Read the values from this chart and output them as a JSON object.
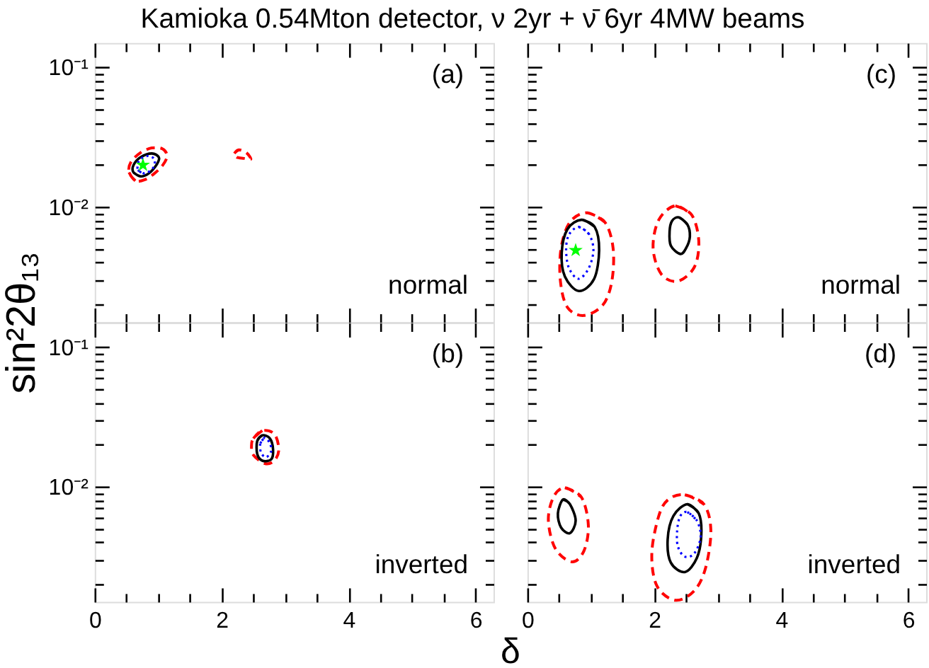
{
  "chart_data": [
    {
      "type": "line",
      "title": "Kamioka 0.54Mton detector, ν 2yr + ν̄ 6yr 4MW beams",
      "ylabel": "sin²2θ₁₃",
      "log": "y",
      "tick_labels": "y",
      "xlim": [
        0,
        6.283
      ],
      "ylim": [
        0.0015,
        0.15
      ],
      "xticks": [
        0,
        {
          "value": 0.5,
          "label": null
        },
        {
          "value": 1,
          "label": null
        },
        {
          "value": 1.5,
          "label": null
        },
        2,
        {
          "value": 2.5,
          "label": null
        },
        {
          "value": 3,
          "label": null
        },
        {
          "value": 3.5,
          "label": null
        },
        4,
        {
          "value": 4.5,
          "label": null
        },
        {
          "value": 5,
          "label": null
        },
        {
          "value": 5.5,
          "label": null
        },
        6
      ],
      "yticks": [
        {
          "value": 0.002,
          "label": null
        },
        {
          "value": 0.003,
          "label": null
        },
        {
          "value": 0.004,
          "label": null
        },
        {
          "value": 0.005,
          "label": null
        },
        {
          "value": 0.006,
          "label": null
        },
        {
          "value": 0.007,
          "label": null
        },
        {
          "value": 0.008,
          "label": null
        },
        {
          "value": 0.009,
          "label": null
        },
        {
          "value": 0.01,
          "label": "10⁻²"
        },
        {
          "value": 0.02,
          "label": null
        },
        {
          "value": 0.03,
          "label": null
        },
        {
          "value": 0.04,
          "label": null
        },
        {
          "value": 0.05,
          "label": null
        },
        {
          "value": 0.06,
          "label": null
        },
        {
          "value": 0.07,
          "label": null
        },
        {
          "value": 0.08,
          "label": null
        },
        {
          "value": 0.09,
          "label": null
        },
        {
          "value": 0.1,
          "label": "10⁻¹"
        }
      ],
      "annotations": [
        "(a)",
        "normal"
      ],
      "series": [
        {
          "color": "#ff0000",
          "line_style": "dashed",
          "x": [
            0.54,
            0.64,
            0.79,
            0.94,
            1.07,
            1.14,
            1.07,
            0.9,
            0.72,
            0.57,
            0.54,
            0.64
          ],
          "values": [
            0.0177,
            0.0154,
            0.0157,
            0.0174,
            0.0199,
            0.0232,
            0.0261,
            0.0265,
            0.0245,
            0.021,
            0.0177,
            0.0154
          ]
        },
        {
          "color": "#ff0000",
          "line_style": "dashed",
          "x": [
            2.2,
            2.27,
            2.39,
            2.46,
            2.35,
            2.24,
            2.2,
            2.27
          ],
          "values": [
            0.0242,
            0.0257,
            0.0245,
            0.022,
            0.0223,
            0.0227,
            0.0242,
            0.0257
          ]
        },
        {
          "color": "#000000",
          "line_style": "solid",
          "x": [
            0.61,
            0.72,
            0.85,
            0.98,
            1.01,
            0.9,
            0.72,
            0.61,
            0.61,
            0.72
          ],
          "values": [
            0.0177,
            0.0166,
            0.0174,
            0.0203,
            0.0227,
            0.0242,
            0.0227,
            0.0199,
            0.0177,
            0.0166
          ]
        },
        {
          "color": "#0000ff",
          "line_style": "dotted",
          "x": [
            0.68,
            0.79,
            0.92,
            0.94,
            0.83,
            0.7,
            0.68,
            0.79
          ],
          "values": [
            0.0184,
            0.0174,
            0.0191,
            0.022,
            0.0232,
            0.0215,
            0.0184,
            0.0174
          ]
        },
        {
          "type": "scatter",
          "marker": "star",
          "color": "#00ff00",
          "x": [
            0.76
          ],
          "values": [
            0.02
          ]
        }
      ]
    },
    {
      "type": "line",
      "log": "y",
      "tick_labels": false,
      "xlim": [
        0,
        6.283
      ],
      "ylim": [
        0.0015,
        0.15
      ],
      "xticks": [
        0,
        {
          "value": 0.5,
          "label": null
        },
        {
          "value": 1,
          "label": null
        },
        {
          "value": 1.5,
          "label": null
        },
        2,
        {
          "value": 2.5,
          "label": null
        },
        {
          "value": 3,
          "label": null
        },
        {
          "value": 3.5,
          "label": null
        },
        4,
        {
          "value": 4.5,
          "label": null
        },
        {
          "value": 5,
          "label": null
        },
        {
          "value": 5.5,
          "label": null
        },
        6
      ],
      "yticks": [
        {
          "value": 0.002,
          "label": null
        },
        {
          "value": 0.003,
          "label": null
        },
        {
          "value": 0.004,
          "label": null
        },
        {
          "value": 0.005,
          "label": null
        },
        {
          "value": 0.006,
          "label": null
        },
        {
          "value": 0.007,
          "label": null
        },
        {
          "value": 0.008,
          "label": null
        },
        {
          "value": 0.009,
          "label": null
        },
        {
          "value": 0.01,
          "label": null
        },
        {
          "value": 0.02,
          "label": null
        },
        {
          "value": 0.03,
          "label": null
        },
        {
          "value": 0.04,
          "label": null
        },
        {
          "value": 0.05,
          "label": null
        },
        {
          "value": 0.06,
          "label": null
        },
        {
          "value": 0.07,
          "label": null
        },
        {
          "value": 0.08,
          "label": null
        },
        {
          "value": 0.09,
          "label": null
        },
        {
          "value": 0.1,
          "label": null
        }
      ],
      "annotations": [
        "(c)",
        "normal"
      ],
      "series": [
        {
          "color": "#ff0000",
          "line_style": "dashed",
          "x": [
            0.94,
            1.22,
            1.35,
            1.33,
            1.19,
            0.89,
            0.63,
            0.52,
            0.53,
            0.67,
            0.94,
            1.22
          ],
          "values": [
            0.0091,
            0.0078,
            0.00507,
            0.00294,
            0.00199,
            0.00167,
            0.00191,
            0.00294,
            0.00507,
            0.0078,
            0.0091,
            0.0078
          ]
        },
        {
          "color": "#ff0000",
          "line_style": "dashed",
          "x": [
            2.33,
            2.59,
            2.7,
            2.63,
            2.37,
            2.11,
            1.98,
            2.07,
            2.33,
            2.59
          ],
          "values": [
            0.0102,
            0.00876,
            0.0057,
            0.00371,
            0.00294,
            0.0033,
            0.00507,
            0.0081,
            0.0102,
            0.00876
          ]
        },
        {
          "color": "#000000",
          "line_style": "solid",
          "x": [
            0.85,
            1.06,
            1.13,
            1.05,
            0.81,
            0.59,
            0.54,
            0.63,
            0.85,
            1.06
          ],
          "values": [
            0.0081,
            0.0072,
            0.0049,
            0.00305,
            0.0025,
            0.00318,
            0.00469,
            0.00693,
            0.0081,
            0.0072
          ]
        },
        {
          "color": "#000000",
          "line_style": "solid",
          "x": [
            2.39,
            2.52,
            2.56,
            2.5,
            2.41,
            2.26,
            2.24,
            2.28,
            2.39,
            2.52
          ],
          "values": [
            0.00842,
            0.0075,
            0.00616,
            0.00507,
            0.00461,
            0.00528,
            0.00667,
            0.00797,
            0.00842,
            0.0075
          ]
        },
        {
          "color": "#0000ff",
          "line_style": "dotted",
          "x": [
            0.81,
            0.97,
            1.04,
            0.96,
            0.8,
            0.65,
            0.61,
            0.66,
            0.81,
            0.97
          ],
          "values": [
            0.0072,
            0.0064,
            0.0049,
            0.0036,
            0.00306,
            0.0037,
            0.00507,
            0.0064,
            0.0072,
            0.0064
          ]
        },
        {
          "type": "scatter",
          "marker": "star",
          "color": "#00ff00",
          "x": [
            0.76
          ],
          "values": [
            0.0049
          ]
        }
      ]
    },
    {
      "type": "line",
      "xlabel": "δ",
      "log": "y",
      "xlim": [
        0,
        6.283
      ],
      "ylim": [
        0.0015,
        0.15
      ],
      "xticks": [
        0,
        {
          "value": 0.5,
          "label": null
        },
        {
          "value": 1,
          "label": null
        },
        {
          "value": 1.5,
          "label": null
        },
        2,
        {
          "value": 2.5,
          "label": null
        },
        {
          "value": 3,
          "label": null
        },
        {
          "value": 3.5,
          "label": null
        },
        4,
        {
          "value": 4.5,
          "label": null
        },
        {
          "value": 5,
          "label": null
        },
        {
          "value": 5.5,
          "label": null
        },
        6
      ],
      "yticks": [
        {
          "value": 0.002,
          "label": null
        },
        {
          "value": 0.003,
          "label": null
        },
        {
          "value": 0.004,
          "label": null
        },
        {
          "value": 0.005,
          "label": null
        },
        {
          "value": 0.006,
          "label": null
        },
        {
          "value": 0.007,
          "label": null
        },
        {
          "value": 0.008,
          "label": null
        },
        {
          "value": 0.009,
          "label": null
        },
        {
          "value": 0.01,
          "label": "10⁻²"
        },
        {
          "value": 0.02,
          "label": null
        },
        {
          "value": 0.03,
          "label": null
        },
        {
          "value": 0.04,
          "label": null
        },
        {
          "value": 0.05,
          "label": null
        },
        {
          "value": 0.06,
          "label": null
        },
        {
          "value": 0.07,
          "label": null
        },
        {
          "value": 0.08,
          "label": null
        },
        {
          "value": 0.09,
          "label": null
        },
        {
          "value": 0.1,
          "label": "10⁻¹"
        }
      ],
      "annotations": [
        "(b)",
        "inverted"
      ],
      "series": [
        {
          "color": "#ff0000",
          "line_style": "dashed",
          "x": [
            2.5,
            2.64,
            2.83,
            2.9,
            2.83,
            2.68,
            2.5,
            2.47,
            2.5,
            2.64
          ],
          "values": [
            0.0222,
            0.0253,
            0.0239,
            0.0185,
            0.0154,
            0.0147,
            0.0169,
            0.0197,
            0.0222,
            0.0253
          ]
        },
        {
          "color": "#000000",
          "line_style": "solid",
          "x": [
            2.56,
            2.64,
            2.76,
            2.81,
            2.78,
            2.64,
            2.56,
            2.56,
            2.64
          ],
          "values": [
            0.0213,
            0.0234,
            0.0222,
            0.0185,
            0.0157,
            0.0154,
            0.0172,
            0.0213,
            0.0234
          ]
        },
        {
          "color": "#0000ff",
          "line_style": "dotted",
          "x": [
            2.61,
            2.68,
            2.76,
            2.78,
            2.7,
            2.62,
            2.61,
            2.68
          ],
          "values": [
            0.0205,
            0.0225,
            0.0205,
            0.018,
            0.0163,
            0.0176,
            0.0205,
            0.0225
          ]
        }
      ]
    },
    {
      "type": "line",
      "log": "y",
      "tick_labels": "x",
      "xlim": [
        0,
        6.283
      ],
      "ylim": [
        0.0015,
        0.15
      ],
      "xticks": [
        0,
        {
          "value": 0.5,
          "label": null
        },
        {
          "value": 1,
          "label": null
        },
        {
          "value": 1.5,
          "label": null
        },
        2,
        {
          "value": 2.5,
          "label": null
        },
        {
          "value": 3,
          "label": null
        },
        {
          "value": 3.5,
          "label": null
        },
        4,
        {
          "value": 4.5,
          "label": null
        },
        {
          "value": 5,
          "label": null
        },
        {
          "value": 5.5,
          "label": null
        },
        6
      ],
      "yticks": [
        {
          "value": 0.002,
          "label": null
        },
        {
          "value": 0.003,
          "label": null
        },
        {
          "value": 0.004,
          "label": null
        },
        {
          "value": 0.005,
          "label": null
        },
        {
          "value": 0.006,
          "label": null
        },
        {
          "value": 0.007,
          "label": null
        },
        {
          "value": 0.008,
          "label": null
        },
        {
          "value": 0.009,
          "label": null
        },
        {
          "value": 0.01,
          "label": null
        },
        {
          "value": 0.02,
          "label": null
        },
        {
          "value": 0.03,
          "label": null
        },
        {
          "value": 0.04,
          "label": null
        },
        {
          "value": 0.05,
          "label": null
        },
        {
          "value": 0.06,
          "label": null
        },
        {
          "value": 0.07,
          "label": null
        },
        {
          "value": 0.08,
          "label": null
        },
        {
          "value": 0.09,
          "label": null
        },
        {
          "value": 0.1,
          "label": null
        }
      ],
      "annotations": [
        "(d)",
        "inverted"
      ],
      "series": [
        {
          "color": "#ff0000",
          "line_style": "dashed",
          "x": [
            0.59,
            0.85,
            0.96,
            0.89,
            0.7,
            0.44,
            0.33,
            0.41,
            0.59,
            0.85
          ],
          "values": [
            0.00985,
            0.00844,
            0.00531,
            0.00347,
            0.0029,
            0.00361,
            0.00573,
            0.00844,
            0.00985,
            0.00844
          ]
        },
        {
          "color": "#ff0000",
          "line_style": "dashed",
          "x": [
            2.48,
            2.78,
            2.89,
            2.81,
            2.63,
            2.33,
            2.04,
            1.96,
            2.07,
            2.22,
            2.48,
            2.78
          ],
          "values": [
            0.00877,
            0.00751,
            0.00491,
            0.00265,
            0.0018,
            0.00154,
            0.00195,
            0.00334,
            0.00619,
            0.00811,
            0.00877,
            0.00751
          ]
        },
        {
          "color": "#000000",
          "line_style": "solid",
          "x": [
            0.56,
            0.67,
            0.76,
            0.67,
            0.53,
            0.48,
            0.56,
            0.67
          ],
          "values": [
            0.00811,
            0.00751,
            0.00573,
            0.00466,
            0.00511,
            0.00645,
            0.00811,
            0.00751
          ]
        },
        {
          "color": "#000000",
          "line_style": "solid",
          "x": [
            2.52,
            2.7,
            2.74,
            2.67,
            2.48,
            2.26,
            2.21,
            2.3,
            2.52,
            2.7
          ],
          "values": [
            0.00751,
            0.00645,
            0.00455,
            0.00309,
            0.00245,
            0.00286,
            0.00421,
            0.00619,
            0.00751,
            0.00645
          ]
        },
        {
          "color": "#0000ff",
          "line_style": "dotted",
          "x": [
            2.52,
            2.67,
            2.73,
            2.63,
            2.48,
            2.37,
            2.36,
            2.41,
            2.52,
            2.67
          ],
          "values": [
            0.00659,
            0.00573,
            0.00438,
            0.00334,
            0.00316,
            0.00375,
            0.00491,
            0.00619,
            0.00659,
            0.00573
          ]
        }
      ]
    }
  ]
}
